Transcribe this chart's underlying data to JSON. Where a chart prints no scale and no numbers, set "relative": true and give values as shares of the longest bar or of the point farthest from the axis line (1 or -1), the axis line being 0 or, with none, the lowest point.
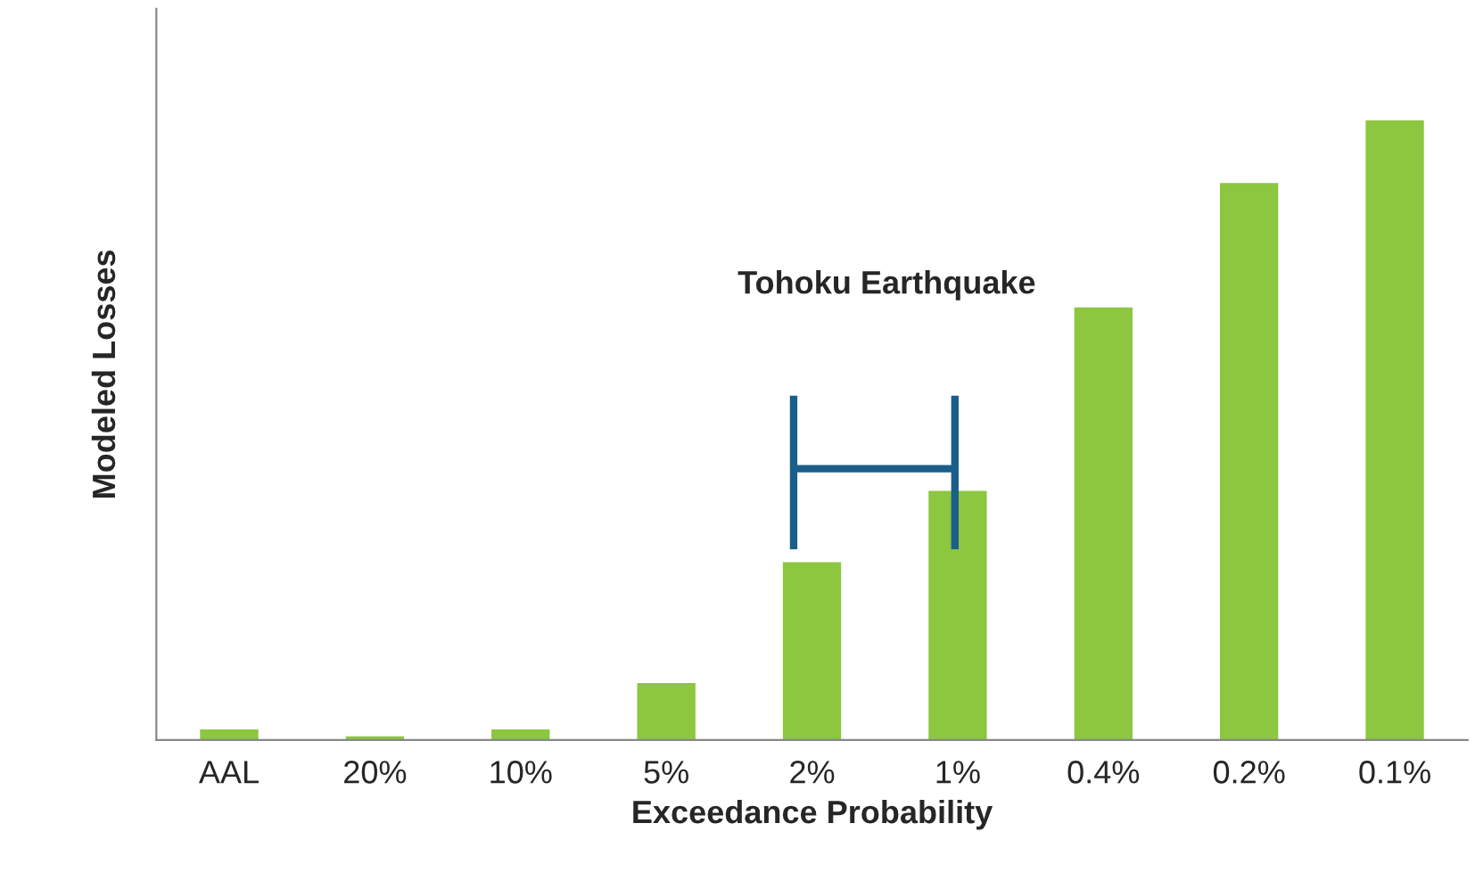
{
  "chart_data": {
    "type": "bar",
    "relative": true,
    "xlabel": "Exceedance Probability",
    "ylabel": "Modeled Losses",
    "categories": [
      "AAL",
      "20%",
      "10%",
      "5%",
      "2%",
      "1%",
      "0.4%",
      "0.2%",
      "0.1%"
    ],
    "values": [
      0.017,
      0.006,
      0.017,
      0.092,
      0.287,
      0.402,
      0.698,
      0.899,
      1
    ],
    "color": "#8dc63f",
    "annotations": [
      "Tohoku Earthquake"
    ],
    "grid": false,
    "legend": false
  }
}
